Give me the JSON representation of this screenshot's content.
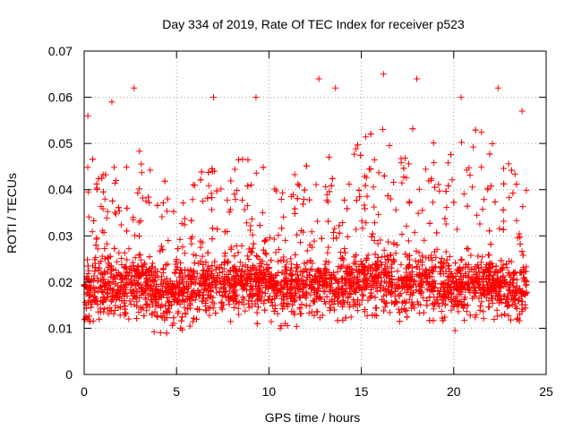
{
  "chart_data": {
    "type": "scatter",
    "title": "Day 334 of 2019, Rate Of TEC Index for receiver p523",
    "xlabel": "GPS time / hours",
    "ylabel": "ROTI / TECUs",
    "xlim": [
      0,
      25
    ],
    "ylim": [
      0,
      0.07
    ],
    "xticks": [
      0,
      5,
      10,
      15,
      20,
      25
    ],
    "xtick_labels": [
      "0",
      "5",
      "10",
      "15",
      "20",
      "25"
    ],
    "yticks": [
      0,
      0.01,
      0.02,
      0.03,
      0.04,
      0.05,
      0.06,
      0.07
    ],
    "ytick_labels": [
      "0",
      "0.01",
      "0.02",
      "0.03",
      "0.04",
      "0.05",
      "0.06",
      "0.07"
    ],
    "grid": true,
    "marker": "+",
    "marker_color": "#ff0000",
    "x_data_range": [
      0,
      23.95
    ],
    "typical_y_band": [
      0.008,
      0.03
    ],
    "series": [
      {
        "name": "ROTI",
        "envelope": {
          "x": [
            0,
            1,
            2,
            3,
            4,
            5,
            6,
            7,
            8,
            9,
            10,
            11,
            12,
            13,
            14,
            15,
            16,
            17,
            18,
            19,
            20,
            21,
            22,
            23,
            24
          ],
          "y_median": [
            0.018,
            0.019,
            0.018,
            0.02,
            0.018,
            0.017,
            0.019,
            0.02,
            0.019,
            0.02,
            0.019,
            0.018,
            0.019,
            0.02,
            0.019,
            0.02,
            0.021,
            0.019,
            0.02,
            0.019,
            0.018,
            0.02,
            0.019,
            0.018,
            0.018
          ],
          "y_upper": [
            0.045,
            0.044,
            0.04,
            0.045,
            0.042,
            0.035,
            0.04,
            0.045,
            0.042,
            0.045,
            0.04,
            0.038,
            0.045,
            0.046,
            0.042,
            0.048,
            0.052,
            0.045,
            0.05,
            0.046,
            0.045,
            0.05,
            0.048,
            0.042,
            0.045
          ]
        },
        "peak_points": [
          {
            "x": 0.2,
            "y": 0.056
          },
          {
            "x": 1.5,
            "y": 0.059
          },
          {
            "x": 2.7,
            "y": 0.062
          },
          {
            "x": 7.0,
            "y": 0.06
          },
          {
            "x": 9.3,
            "y": 0.06
          },
          {
            "x": 12.7,
            "y": 0.064
          },
          {
            "x": 13.6,
            "y": 0.062
          },
          {
            "x": 16.2,
            "y": 0.065
          },
          {
            "x": 18.0,
            "y": 0.064
          },
          {
            "x": 20.4,
            "y": 0.06
          },
          {
            "x": 22.4,
            "y": 0.062
          },
          {
            "x": 23.7,
            "y": 0.057
          }
        ]
      }
    ]
  }
}
